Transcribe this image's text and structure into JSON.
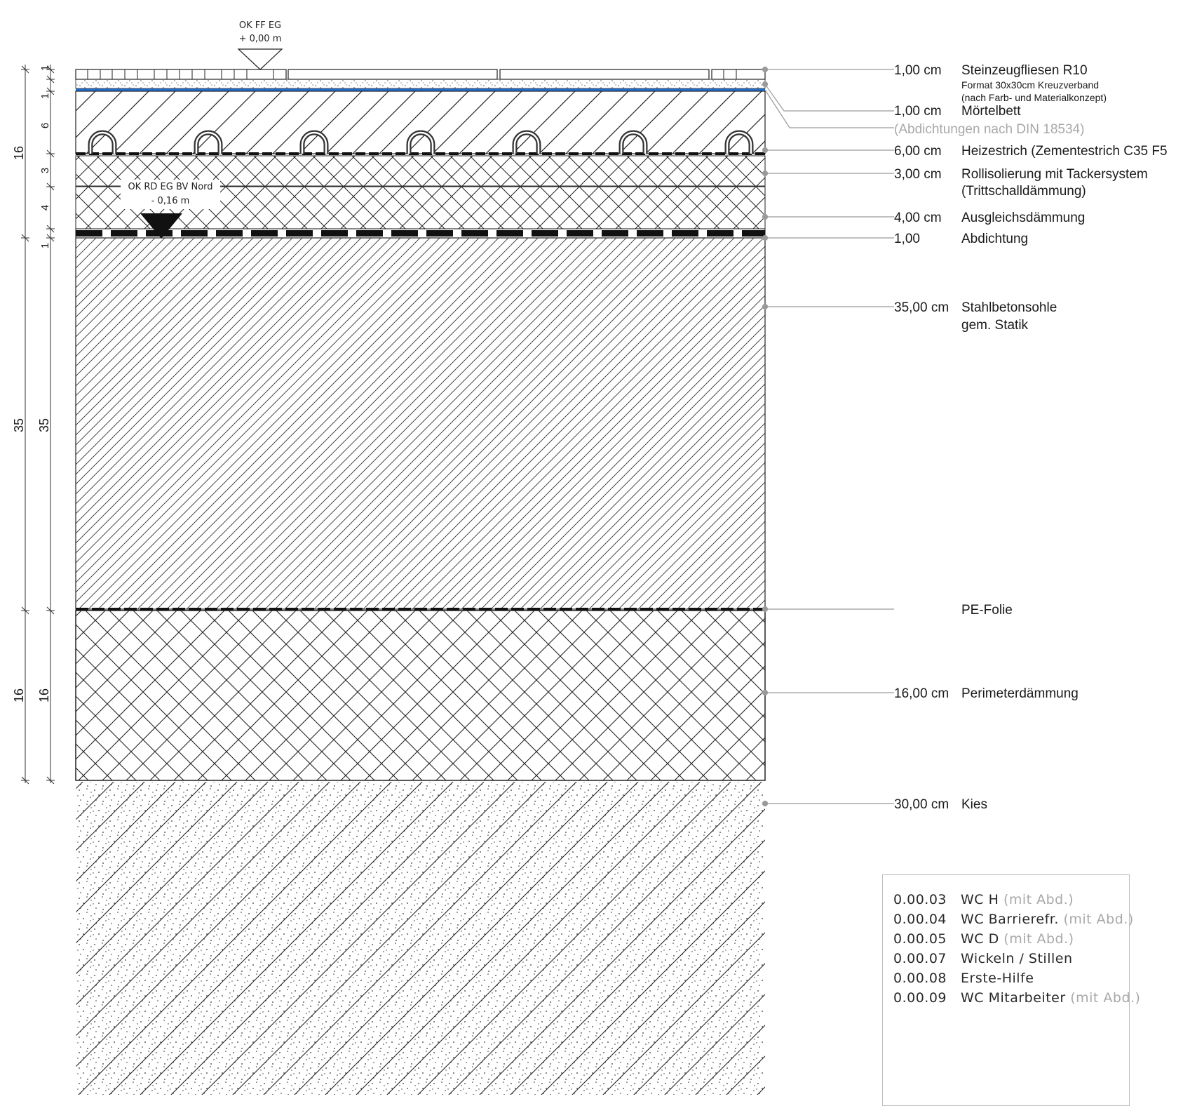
{
  "elevations": {
    "top": {
      "line1": "OK FF EG",
      "line2": "+ 0,00 m"
    },
    "rough": {
      "line1": "OK RD EG BV Nord",
      "line2": "- 0,16 m"
    }
  },
  "dimensions": {
    "outer": [
      "16",
      "35",
      "16"
    ],
    "inner": [
      "1",
      "1",
      "6",
      "3",
      "4",
      "1",
      "35",
      "16"
    ]
  },
  "layers": [
    {
      "thickness": "1,00 cm",
      "name": "Steinzeugfliesen R10",
      "note1": "Format 30x30cm Kreuzverband",
      "note2": "(nach Farb- und Materialkonzept)"
    },
    {
      "thickness": "1,00 cm",
      "name": "Mörtelbett"
    },
    {
      "thickness": "",
      "name": "(Abdichtungen nach DIN 18534)"
    },
    {
      "thickness": "6,00 cm",
      "name": "Heizestrich (Zementestrich C35 F5"
    },
    {
      "thickness": "3,00 cm",
      "name": "Rollisolierung mit Tackersystem",
      "note1": "(Trittschalldämmung)"
    },
    {
      "thickness": "4,00 cm",
      "name": "Ausgleichsdämmung"
    },
    {
      "thickness": "1,00",
      "name": "Abdichtung"
    },
    {
      "thickness": "35,00 cm",
      "name": "Stahlbetonsohle",
      "note1": "gem. Statik"
    },
    {
      "thickness": "",
      "name": "PE-Folie"
    },
    {
      "thickness": "16,00 cm",
      "name": "Perimeterdämmung"
    },
    {
      "thickness": "30,00 cm",
      "name": "Kies"
    }
  ],
  "rooms": [
    {
      "no": "0.00.03",
      "name": "WC H",
      "note": "(mit Abd.)"
    },
    {
      "no": "0.00.04",
      "name": "WC Barrierefr.",
      "note": "(mit Abd.)"
    },
    {
      "no": "0.00.05",
      "name": "WC D",
      "note": "(mit Abd.)"
    },
    {
      "no": "0.00.07",
      "name": "Wickeln / Stillen",
      "note": ""
    },
    {
      "no": "0.00.08",
      "name": "Erste-Hilfe",
      "note": ""
    },
    {
      "no": "0.00.09",
      "name": "WC Mitarbeiter",
      "note": "(mit Abd.)"
    }
  ],
  "colors": {
    "waterproofing": "#1f6fd1",
    "leader": "#9a9a9a",
    "grey_text": "#a8a8a8"
  }
}
